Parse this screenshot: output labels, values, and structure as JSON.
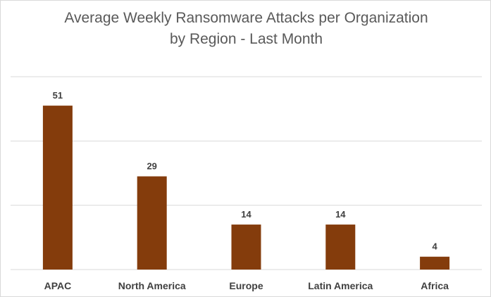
{
  "chart_data": {
    "type": "bar",
    "title_lines": [
      "Average Weekly Ransomware Attacks per Organization",
      "by Region - Last Month"
    ],
    "categories": [
      "APAC",
      "North America",
      "Europe",
      "Latin America",
      "Africa"
    ],
    "values": [
      51,
      29,
      14,
      14,
      4
    ],
    "xlabel": "",
    "ylabel": "",
    "ylim": [
      0,
      60
    ],
    "gridlines": [
      20,
      40,
      60
    ],
    "grid": true,
    "legend": "none",
    "bar_color": "#843C0C",
    "data_labels": true
  }
}
